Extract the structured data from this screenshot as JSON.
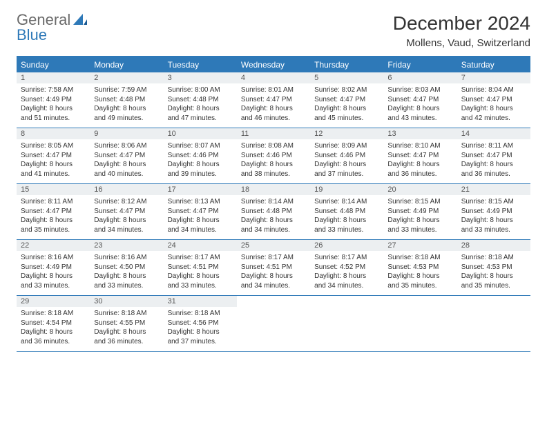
{
  "logo": {
    "general": "General",
    "blue": "Blue"
  },
  "title": "December 2024",
  "location": "Mollens, Vaud, Switzerland",
  "colors": {
    "accent": "#2e79b8",
    "header_text": "#ffffff",
    "daynum_bg": "#eceff1",
    "body_text": "#333333",
    "logo_gray": "#6a6a6a"
  },
  "days_of_week": [
    "Sunday",
    "Monday",
    "Tuesday",
    "Wednesday",
    "Thursday",
    "Friday",
    "Saturday"
  ],
  "weeks": [
    [
      {
        "n": "1",
        "sunrise": "Sunrise: 7:58 AM",
        "sunset": "Sunset: 4:49 PM",
        "daylight": "Daylight: 8 hours and 51 minutes."
      },
      {
        "n": "2",
        "sunrise": "Sunrise: 7:59 AM",
        "sunset": "Sunset: 4:48 PM",
        "daylight": "Daylight: 8 hours and 49 minutes."
      },
      {
        "n": "3",
        "sunrise": "Sunrise: 8:00 AM",
        "sunset": "Sunset: 4:48 PM",
        "daylight": "Daylight: 8 hours and 47 minutes."
      },
      {
        "n": "4",
        "sunrise": "Sunrise: 8:01 AM",
        "sunset": "Sunset: 4:47 PM",
        "daylight": "Daylight: 8 hours and 46 minutes."
      },
      {
        "n": "5",
        "sunrise": "Sunrise: 8:02 AM",
        "sunset": "Sunset: 4:47 PM",
        "daylight": "Daylight: 8 hours and 45 minutes."
      },
      {
        "n": "6",
        "sunrise": "Sunrise: 8:03 AM",
        "sunset": "Sunset: 4:47 PM",
        "daylight": "Daylight: 8 hours and 43 minutes."
      },
      {
        "n": "7",
        "sunrise": "Sunrise: 8:04 AM",
        "sunset": "Sunset: 4:47 PM",
        "daylight": "Daylight: 8 hours and 42 minutes."
      }
    ],
    [
      {
        "n": "8",
        "sunrise": "Sunrise: 8:05 AM",
        "sunset": "Sunset: 4:47 PM",
        "daylight": "Daylight: 8 hours and 41 minutes."
      },
      {
        "n": "9",
        "sunrise": "Sunrise: 8:06 AM",
        "sunset": "Sunset: 4:47 PM",
        "daylight": "Daylight: 8 hours and 40 minutes."
      },
      {
        "n": "10",
        "sunrise": "Sunrise: 8:07 AM",
        "sunset": "Sunset: 4:46 PM",
        "daylight": "Daylight: 8 hours and 39 minutes."
      },
      {
        "n": "11",
        "sunrise": "Sunrise: 8:08 AM",
        "sunset": "Sunset: 4:46 PM",
        "daylight": "Daylight: 8 hours and 38 minutes."
      },
      {
        "n": "12",
        "sunrise": "Sunrise: 8:09 AM",
        "sunset": "Sunset: 4:46 PM",
        "daylight": "Daylight: 8 hours and 37 minutes."
      },
      {
        "n": "13",
        "sunrise": "Sunrise: 8:10 AM",
        "sunset": "Sunset: 4:47 PM",
        "daylight": "Daylight: 8 hours and 36 minutes."
      },
      {
        "n": "14",
        "sunrise": "Sunrise: 8:11 AM",
        "sunset": "Sunset: 4:47 PM",
        "daylight": "Daylight: 8 hours and 36 minutes."
      }
    ],
    [
      {
        "n": "15",
        "sunrise": "Sunrise: 8:11 AM",
        "sunset": "Sunset: 4:47 PM",
        "daylight": "Daylight: 8 hours and 35 minutes."
      },
      {
        "n": "16",
        "sunrise": "Sunrise: 8:12 AM",
        "sunset": "Sunset: 4:47 PM",
        "daylight": "Daylight: 8 hours and 34 minutes."
      },
      {
        "n": "17",
        "sunrise": "Sunrise: 8:13 AM",
        "sunset": "Sunset: 4:47 PM",
        "daylight": "Daylight: 8 hours and 34 minutes."
      },
      {
        "n": "18",
        "sunrise": "Sunrise: 8:14 AM",
        "sunset": "Sunset: 4:48 PM",
        "daylight": "Daylight: 8 hours and 34 minutes."
      },
      {
        "n": "19",
        "sunrise": "Sunrise: 8:14 AM",
        "sunset": "Sunset: 4:48 PM",
        "daylight": "Daylight: 8 hours and 33 minutes."
      },
      {
        "n": "20",
        "sunrise": "Sunrise: 8:15 AM",
        "sunset": "Sunset: 4:49 PM",
        "daylight": "Daylight: 8 hours and 33 minutes."
      },
      {
        "n": "21",
        "sunrise": "Sunrise: 8:15 AM",
        "sunset": "Sunset: 4:49 PM",
        "daylight": "Daylight: 8 hours and 33 minutes."
      }
    ],
    [
      {
        "n": "22",
        "sunrise": "Sunrise: 8:16 AM",
        "sunset": "Sunset: 4:49 PM",
        "daylight": "Daylight: 8 hours and 33 minutes."
      },
      {
        "n": "23",
        "sunrise": "Sunrise: 8:16 AM",
        "sunset": "Sunset: 4:50 PM",
        "daylight": "Daylight: 8 hours and 33 minutes."
      },
      {
        "n": "24",
        "sunrise": "Sunrise: 8:17 AM",
        "sunset": "Sunset: 4:51 PM",
        "daylight": "Daylight: 8 hours and 33 minutes."
      },
      {
        "n": "25",
        "sunrise": "Sunrise: 8:17 AM",
        "sunset": "Sunset: 4:51 PM",
        "daylight": "Daylight: 8 hours and 34 minutes."
      },
      {
        "n": "26",
        "sunrise": "Sunrise: 8:17 AM",
        "sunset": "Sunset: 4:52 PM",
        "daylight": "Daylight: 8 hours and 34 minutes."
      },
      {
        "n": "27",
        "sunrise": "Sunrise: 8:18 AM",
        "sunset": "Sunset: 4:53 PM",
        "daylight": "Daylight: 8 hours and 35 minutes."
      },
      {
        "n": "28",
        "sunrise": "Sunrise: 8:18 AM",
        "sunset": "Sunset: 4:53 PM",
        "daylight": "Daylight: 8 hours and 35 minutes."
      }
    ],
    [
      {
        "n": "29",
        "sunrise": "Sunrise: 8:18 AM",
        "sunset": "Sunset: 4:54 PM",
        "daylight": "Daylight: 8 hours and 36 minutes."
      },
      {
        "n": "30",
        "sunrise": "Sunrise: 8:18 AM",
        "sunset": "Sunset: 4:55 PM",
        "daylight": "Daylight: 8 hours and 36 minutes."
      },
      {
        "n": "31",
        "sunrise": "Sunrise: 8:18 AM",
        "sunset": "Sunset: 4:56 PM",
        "daylight": "Daylight: 8 hours and 37 minutes."
      },
      null,
      null,
      null,
      null
    ]
  ]
}
